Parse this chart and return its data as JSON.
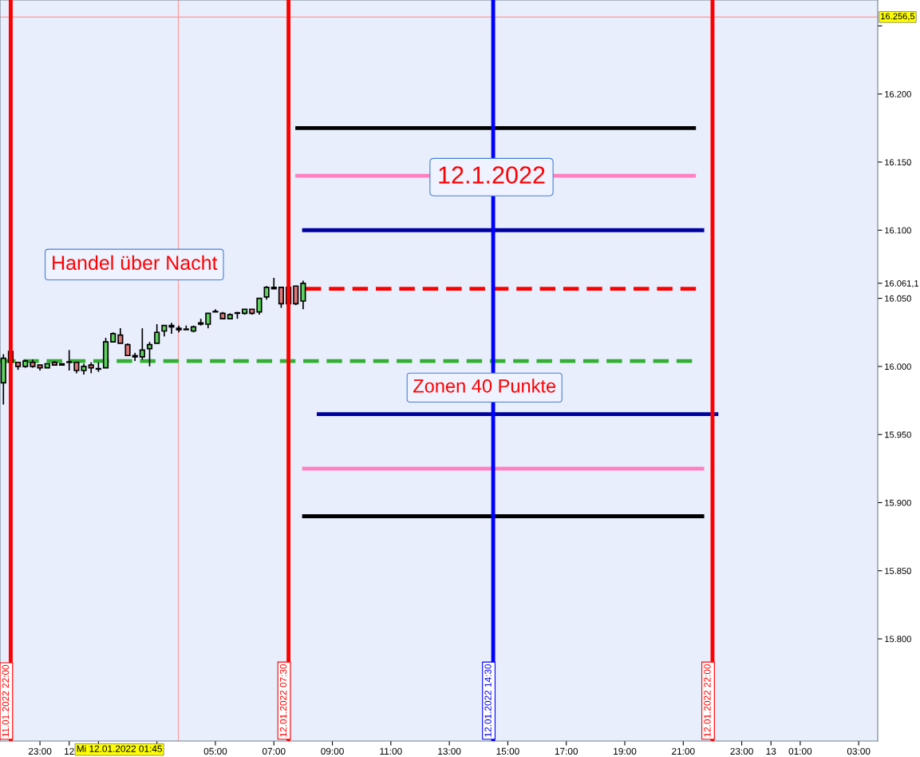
{
  "chart_data": {
    "type": "candlestick",
    "x": [
      "2022-01-11T21:45",
      "2022-01-11T22:00",
      "2022-01-11T22:15",
      "2022-01-11T22:30",
      "2022-01-11T22:45",
      "2022-01-11T23:00",
      "2022-01-11T23:15",
      "2022-01-11T23:30",
      "2022-01-11T23:45",
      "2022-01-12T00:00",
      "2022-01-12T00:15",
      "2022-01-12T00:30",
      "2022-01-12T00:45",
      "2022-01-12T01:00",
      "2022-01-12T01:15",
      "2022-01-12T01:30",
      "2022-01-12T01:45",
      "2022-01-12T02:00",
      "2022-01-12T02:15",
      "2022-01-12T02:30",
      "2022-01-12T02:45",
      "2022-01-12T03:00",
      "2022-01-12T03:15",
      "2022-01-12T03:30",
      "2022-01-12T03:45",
      "2022-01-12T04:00",
      "2022-01-12T04:15",
      "2022-01-12T04:30",
      "2022-01-12T04:45",
      "2022-01-12T05:00",
      "2022-01-12T05:15",
      "2022-01-12T05:30",
      "2022-01-12T05:45",
      "2022-01-12T06:00",
      "2022-01-12T06:15",
      "2022-01-12T06:30",
      "2022-01-12T06:45",
      "2022-01-12T07:00",
      "2022-01-12T07:15",
      "2022-01-12T07:30",
      "2022-01-12T07:45",
      "2022-01-12T08:00"
    ],
    "ohlc": [
      [
        15988,
        16009,
        15972,
        16006
      ],
      [
        16011,
        16011,
        16003,
        16003
      ],
      [
        16003,
        16003,
        15997.5,
        16000
      ],
      [
        16000,
        16005,
        15999,
        16004
      ],
      [
        16003,
        16005,
        15999,
        16000
      ],
      [
        16001,
        16001,
        15997,
        15999
      ],
      [
        15999,
        16002,
        15999,
        16002
      ],
      [
        16003,
        16004,
        16001,
        16001
      ],
      [
        16001,
        16002,
        16001,
        16002
      ],
      [
        16003,
        16012,
        15997,
        16003
      ],
      [
        16003,
        16003,
        15995,
        15997
      ],
      [
        15997,
        16002,
        15994,
        16000
      ],
      [
        16001,
        16003,
        15995,
        15999
      ],
      [
        15998,
        16003,
        15996,
        15998
      ],
      [
        15999,
        16021,
        15999,
        16018
      ],
      [
        16018,
        16025,
        16018,
        16024
      ],
      [
        16023,
        16028,
        16017,
        16017
      ],
      [
        16016,
        16017,
        16008,
        16008
      ],
      [
        16008,
        16010,
        16004,
        16007
      ],
      [
        16007,
        16028,
        16005,
        16012
      ],
      [
        16013,
        16018,
        16000,
        16016
      ],
      [
        16017,
        16031,
        16017,
        16025
      ],
      [
        16026,
        16030,
        16022,
        16030
      ],
      [
        16030,
        16032,
        16024,
        16029
      ],
      [
        16028,
        16030,
        16025,
        16027
      ],
      [
        16027,
        16030,
        16027,
        16027
      ],
      [
        16026,
        16030,
        16025,
        16029
      ],
      [
        16031,
        16035,
        16030,
        16032
      ],
      [
        16031,
        16039,
        16028,
        16039
      ],
      [
        16040,
        16042,
        16040,
        16040
      ],
      [
        16039,
        16040,
        16035,
        16035
      ],
      [
        16035,
        16039,
        16035,
        16038
      ],
      [
        16039,
        16040,
        16035,
        16039
      ],
      [
        16039,
        16042,
        16038,
        16042
      ],
      [
        16042,
        16042,
        16038,
        16039
      ],
      [
        16040,
        16050,
        16038,
        16050
      ],
      [
        16051,
        16059,
        16049,
        16058
      ],
      [
        16057,
        16065,
        16057,
        16058
      ],
      [
        16058,
        16058,
        16043,
        16046
      ],
      [
        16046,
        16058,
        16046,
        16058
      ],
      [
        16059,
        16059,
        16045,
        16046
      ],
      [
        16048,
        16063,
        16042,
        16061
      ]
    ],
    "colors": [
      "#5fd35f",
      "#e07878",
      "#e07878",
      "#5fd35f",
      "#e07878",
      "#e07878",
      "#5fd35f",
      "#e07878",
      "#5fd35f",
      "#5fd35f",
      "#e07878",
      "#5fd35f",
      "#e07878",
      "#5fd35f",
      "#5fd35f",
      "#5fd35f",
      "#e07878",
      "#e07878",
      "#e07878",
      "#5fd35f",
      "#5fd35f",
      "#5fd35f",
      "#5fd35f",
      "#e07878",
      "#e07878",
      "#5fd35f",
      "#5fd35f",
      "#5fd35f",
      "#5fd35f",
      "#5fd35f",
      "#e07878",
      "#5fd35f",
      "#5fd35f",
      "#5fd35f",
      "#e07878",
      "#5fd35f",
      "#5fd35f",
      "#5fd35f",
      "#e07878",
      "#5fd35f",
      "#e07878",
      "#5fd35f"
    ],
    "series": [
      {
        "type": "line",
        "x": [
          "2022-01-12T07:44",
          "2022-01-12T21:26"
        ],
        "values": [
          16175,
          16175
        ],
        "color": "#000000",
        "line_style": "solid"
      },
      {
        "type": "line",
        "x": [
          "2022-01-12T07:44",
          "2022-01-12T21:26"
        ],
        "values": [
          16140,
          16140
        ],
        "color": "#ff80c0",
        "line_style": "solid"
      },
      {
        "type": "line",
        "x": [
          "2022-01-12T07:58",
          "2022-01-12T21:43"
        ],
        "values": [
          16100,
          16100
        ],
        "color": "#0000a0",
        "line_style": "solid"
      },
      {
        "type": "line",
        "x": [
          "2022-01-12T08:05",
          "2022-01-12T21:26"
        ],
        "values": [
          16057,
          16057
        ],
        "color": "#ff0000",
        "line_style": "dashed"
      },
      {
        "type": "line",
        "x": [
          "2022-01-11T21:38",
          "2022-01-12T21:18"
        ],
        "values": [
          16004,
          16004
        ],
        "color": "#33b033",
        "line_style": "dashed"
      },
      {
        "type": "line",
        "x": [
          "2022-01-12T08:28",
          "2022-01-12T22:12"
        ],
        "values": [
          15965,
          15965
        ],
        "color": "#0000a0",
        "line_style": "solid"
      },
      {
        "type": "line",
        "x": [
          "2022-01-12T07:58",
          "2022-01-12T21:43"
        ],
        "values": [
          15925,
          15925
        ],
        "color": "#ff80c0",
        "line_style": "solid"
      },
      {
        "type": "line",
        "x": [
          "2022-01-12T07:58",
          "2022-01-12T21:43"
        ],
        "values": [
          15890,
          15890
        ],
        "color": "#000000",
        "line_style": "solid"
      }
    ],
    "ref_lines": [
      {
        "axis": "x",
        "value": "2022-01-11T22:00",
        "label": "11.01.2022 22:00",
        "color": "#ff0000"
      },
      {
        "axis": "x",
        "value": "2022-01-12T07:30",
        "label": "12.01.2022 07:30",
        "color": "#ff0000"
      },
      {
        "axis": "x",
        "value": "2022-01-12T14:30",
        "label": "12.01.2022 14:30",
        "color": "#0000ff"
      },
      {
        "axis": "x",
        "value": "2022-01-12T22:00",
        "label": "12.01.2022 22:00",
        "color": "#ff0000"
      },
      {
        "axis": "x",
        "value": "2022-01-12T03:44",
        "label": null,
        "color": "#ff9999"
      },
      {
        "axis": "y",
        "value": 16256.5,
        "label": "16.256,5",
        "color": "#ff9999"
      }
    ],
    "annotations": [
      "Handel über Nacht",
      "12.1.2022",
      "Zonen 40 Punkte",
      "Mi 12.01.2022 01:45"
    ],
    "xlim": [
      "2022-01-11T21:38",
      "2022-01-13T03:39"
    ],
    "xticks": [
      {
        "value": "2022-01-11T23:00",
        "label": "23:00"
      },
      {
        "value": "2022-01-12T00:00",
        "label": "12"
      },
      {
        "value": "2022-01-12T01:00",
        "label": null
      },
      {
        "value": "2022-01-12T03:00",
        "label": null
      },
      {
        "value": "2022-01-12T05:00",
        "label": "05:00"
      },
      {
        "value": "2022-01-12T07:00",
        "label": "07:00"
      },
      {
        "value": "2022-01-12T09:00",
        "label": "09:00"
      },
      {
        "value": "2022-01-12T11:00",
        "label": "11:00"
      },
      {
        "value": "2022-01-12T13:00",
        "label": "13:00"
      },
      {
        "value": "2022-01-12T15:00",
        "label": "15:00"
      },
      {
        "value": "2022-01-12T17:00",
        "label": "17:00"
      },
      {
        "value": "2022-01-12T19:00",
        "label": "19:00"
      },
      {
        "value": "2022-01-12T21:00",
        "label": "21:00"
      },
      {
        "value": "2022-01-12T23:00",
        "label": "23:00"
      },
      {
        "value": "2022-01-13T00:00",
        "label": "13"
      },
      {
        "value": "2022-01-13T01:00",
        "label": "01:00"
      },
      {
        "value": "2022-01-13T03:00",
        "label": "03:00"
      }
    ],
    "ylim": [
      15725,
      16269
    ],
    "yticks": [
      {
        "value": 15800,
        "label": "15.800"
      },
      {
        "value": 15850,
        "label": "15.850"
      },
      {
        "value": 15900,
        "label": "15.900"
      },
      {
        "value": 15950,
        "label": "15.950"
      },
      {
        "value": 16000,
        "label": "16.000"
      },
      {
        "value": 16050,
        "label": "16.050"
      },
      {
        "value": 16061.1,
        "label": "16.061,1"
      },
      {
        "value": 16100,
        "label": "16.100"
      },
      {
        "value": 16150,
        "label": "16.150"
      },
      {
        "value": 16200,
        "label": "16.200"
      },
      {
        "value": 16250,
        "label": null
      }
    ],
    "grid": false,
    "legend": false
  }
}
